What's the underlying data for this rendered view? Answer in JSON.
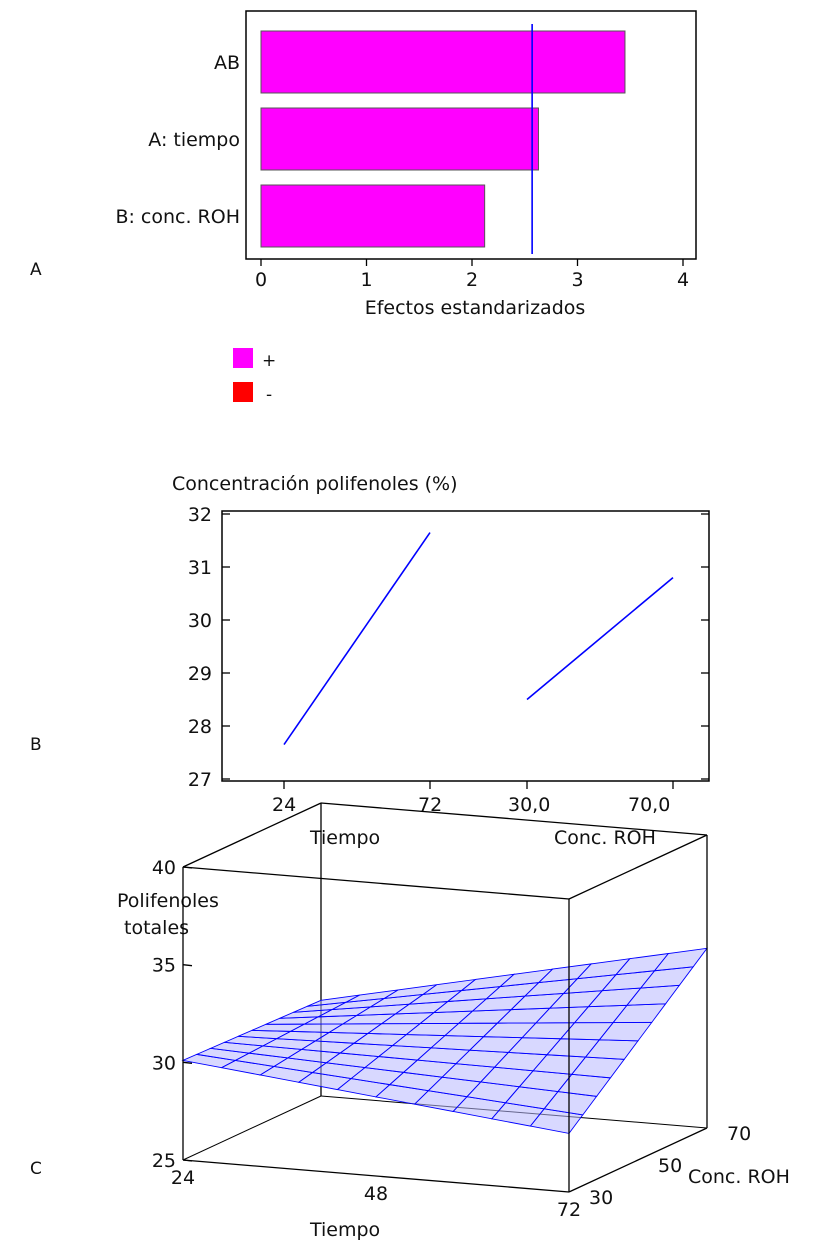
{
  "panel_labels": [
    "A",
    "B",
    "C"
  ],
  "chart_data": [
    {
      "type": "bar",
      "orientation": "horizontal",
      "categories": [
        "AB",
        "A: tiempo",
        "B: conc. ROH"
      ],
      "values": [
        3.45,
        2.63,
        2.12
      ],
      "xlabel": "Efectos estandarizados",
      "xlim": [
        0,
        4
      ],
      "xticks": [
        0,
        1,
        2,
        3,
        4
      ],
      "reference_line": 2.57,
      "legend": {
        "placement": "bottom-center",
        "items": [
          {
            "label": "+",
            "color": "#ff00ff"
          },
          {
            "label": "-",
            "color": "#ff0000"
          }
        ]
      },
      "colors": {
        "bar": "#ff00ff",
        "line": "#0000ff"
      }
    },
    {
      "type": "line",
      "title": "Concentración polifenoles (%)",
      "ylim": [
        27,
        32
      ],
      "yticks": [
        27,
        28,
        29,
        30,
        31,
        32
      ],
      "groups": [
        {
          "label": "Tiempo",
          "tick_labels": [
            "24",
            "72"
          ],
          "y": [
            27.65,
            31.65
          ]
        },
        {
          "label": "Conc. ROH",
          "tick_labels": [
            "30,0",
            "70,0"
          ],
          "y": [
            28.5,
            30.8
          ]
        }
      ],
      "colors": {
        "line": "#0000ff"
      }
    },
    {
      "type": "surface",
      "zlabel": [
        "Polifenoles",
        "totales"
      ],
      "xlabel": "Tiempo",
      "ylabel": "Conc. ROH",
      "zticks": [
        "40",
        "35",
        "30",
        "25"
      ],
      "xticks": [
        "24",
        "48",
        "72"
      ],
      "yticks": [
        "30",
        "50",
        "70"
      ],
      "zlim": [
        25,
        40
      ],
      "xlim": [
        24,
        72
      ],
      "ylim": [
        30,
        70
      ],
      "corner_values": {
        "t24_c30": 30.1,
        "t72_c30": 28.0,
        "t24_c70": 29.9,
        "t72_c70": 34.2
      },
      "grid": "10x10",
      "colors": {
        "mesh": "#0000ff",
        "fill": "#b8b8ff"
      }
    }
  ]
}
